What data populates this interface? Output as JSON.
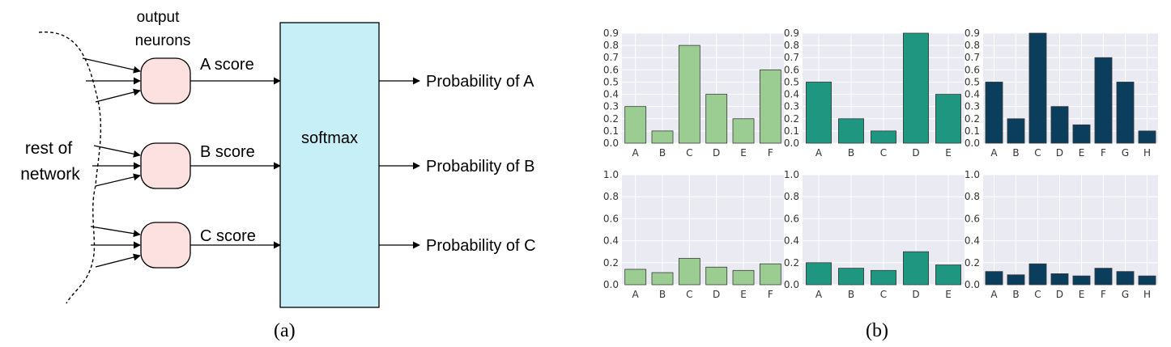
{
  "diagram": {
    "neurons_label_line1": "output",
    "neurons_label_line2": "neurons",
    "rest_label_line1": "rest of",
    "rest_label_line2": "network",
    "softmax_label": "softmax",
    "scores": [
      "A score",
      "B score",
      "C score"
    ],
    "probabilities": [
      "Probability of A",
      "Probability of B",
      "Probability of C"
    ],
    "colors": {
      "neuron_fill": "#fde0e0",
      "softmax_fill": "#c7eff7"
    }
  },
  "captions": {
    "a": "(a)",
    "b": "(b)"
  },
  "chart_data": [
    {
      "type": "bar",
      "categories": [
        "A",
        "B",
        "C",
        "D",
        "E",
        "F"
      ],
      "values": [
        0.3,
        0.1,
        0.8,
        0.4,
        0.2,
        0.6
      ],
      "ylim": [
        0,
        0.9
      ],
      "yticks": [
        0.0,
        0.1,
        0.2,
        0.3,
        0.4,
        0.5,
        0.6,
        0.7,
        0.8,
        0.9
      ],
      "color": "#9bcd92",
      "grid": true
    },
    {
      "type": "bar",
      "categories": [
        "A",
        "B",
        "C",
        "D",
        "E"
      ],
      "values": [
        0.5,
        0.2,
        0.1,
        0.9,
        0.4
      ],
      "ylim": [
        0,
        0.9
      ],
      "yticks": [
        0.0,
        0.1,
        0.2,
        0.3,
        0.4,
        0.5,
        0.6,
        0.7,
        0.8,
        0.9
      ],
      "color": "#1e9680",
      "grid": true
    },
    {
      "type": "bar",
      "categories": [
        "A",
        "B",
        "C",
        "D",
        "E",
        "F",
        "G",
        "H"
      ],
      "values": [
        0.5,
        0.2,
        0.9,
        0.3,
        0.15,
        0.7,
        0.5,
        0.1
      ],
      "ylim": [
        0,
        0.9
      ],
      "yticks": [
        0.0,
        0.1,
        0.2,
        0.3,
        0.4,
        0.5,
        0.6,
        0.7,
        0.8,
        0.9
      ],
      "color": "#0b3d5c",
      "grid": true
    },
    {
      "type": "bar",
      "categories": [
        "A",
        "B",
        "C",
        "D",
        "E",
        "F"
      ],
      "values": [
        0.14,
        0.11,
        0.24,
        0.16,
        0.13,
        0.19
      ],
      "ylim": [
        0,
        1.0
      ],
      "yticks": [
        0.0,
        0.2,
        0.4,
        0.6,
        0.8,
        1.0
      ],
      "color": "#9bcd92",
      "grid": true
    },
    {
      "type": "bar",
      "categories": [
        "A",
        "B",
        "C",
        "D",
        "E"
      ],
      "values": [
        0.2,
        0.15,
        0.13,
        0.3,
        0.18
      ],
      "ylim": [
        0,
        1.0
      ],
      "yticks": [
        0.0,
        0.2,
        0.4,
        0.6,
        0.8,
        1.0
      ],
      "color": "#1e9680",
      "grid": true
    },
    {
      "type": "bar",
      "categories": [
        "A",
        "B",
        "C",
        "D",
        "E",
        "F",
        "G",
        "H"
      ],
      "values": [
        0.12,
        0.09,
        0.19,
        0.1,
        0.08,
        0.15,
        0.12,
        0.08
      ],
      "ylim": [
        0,
        1.0
      ],
      "yticks": [
        0.0,
        0.2,
        0.4,
        0.6,
        0.8,
        1.0
      ],
      "color": "#0b3d5c",
      "grid": true
    }
  ]
}
